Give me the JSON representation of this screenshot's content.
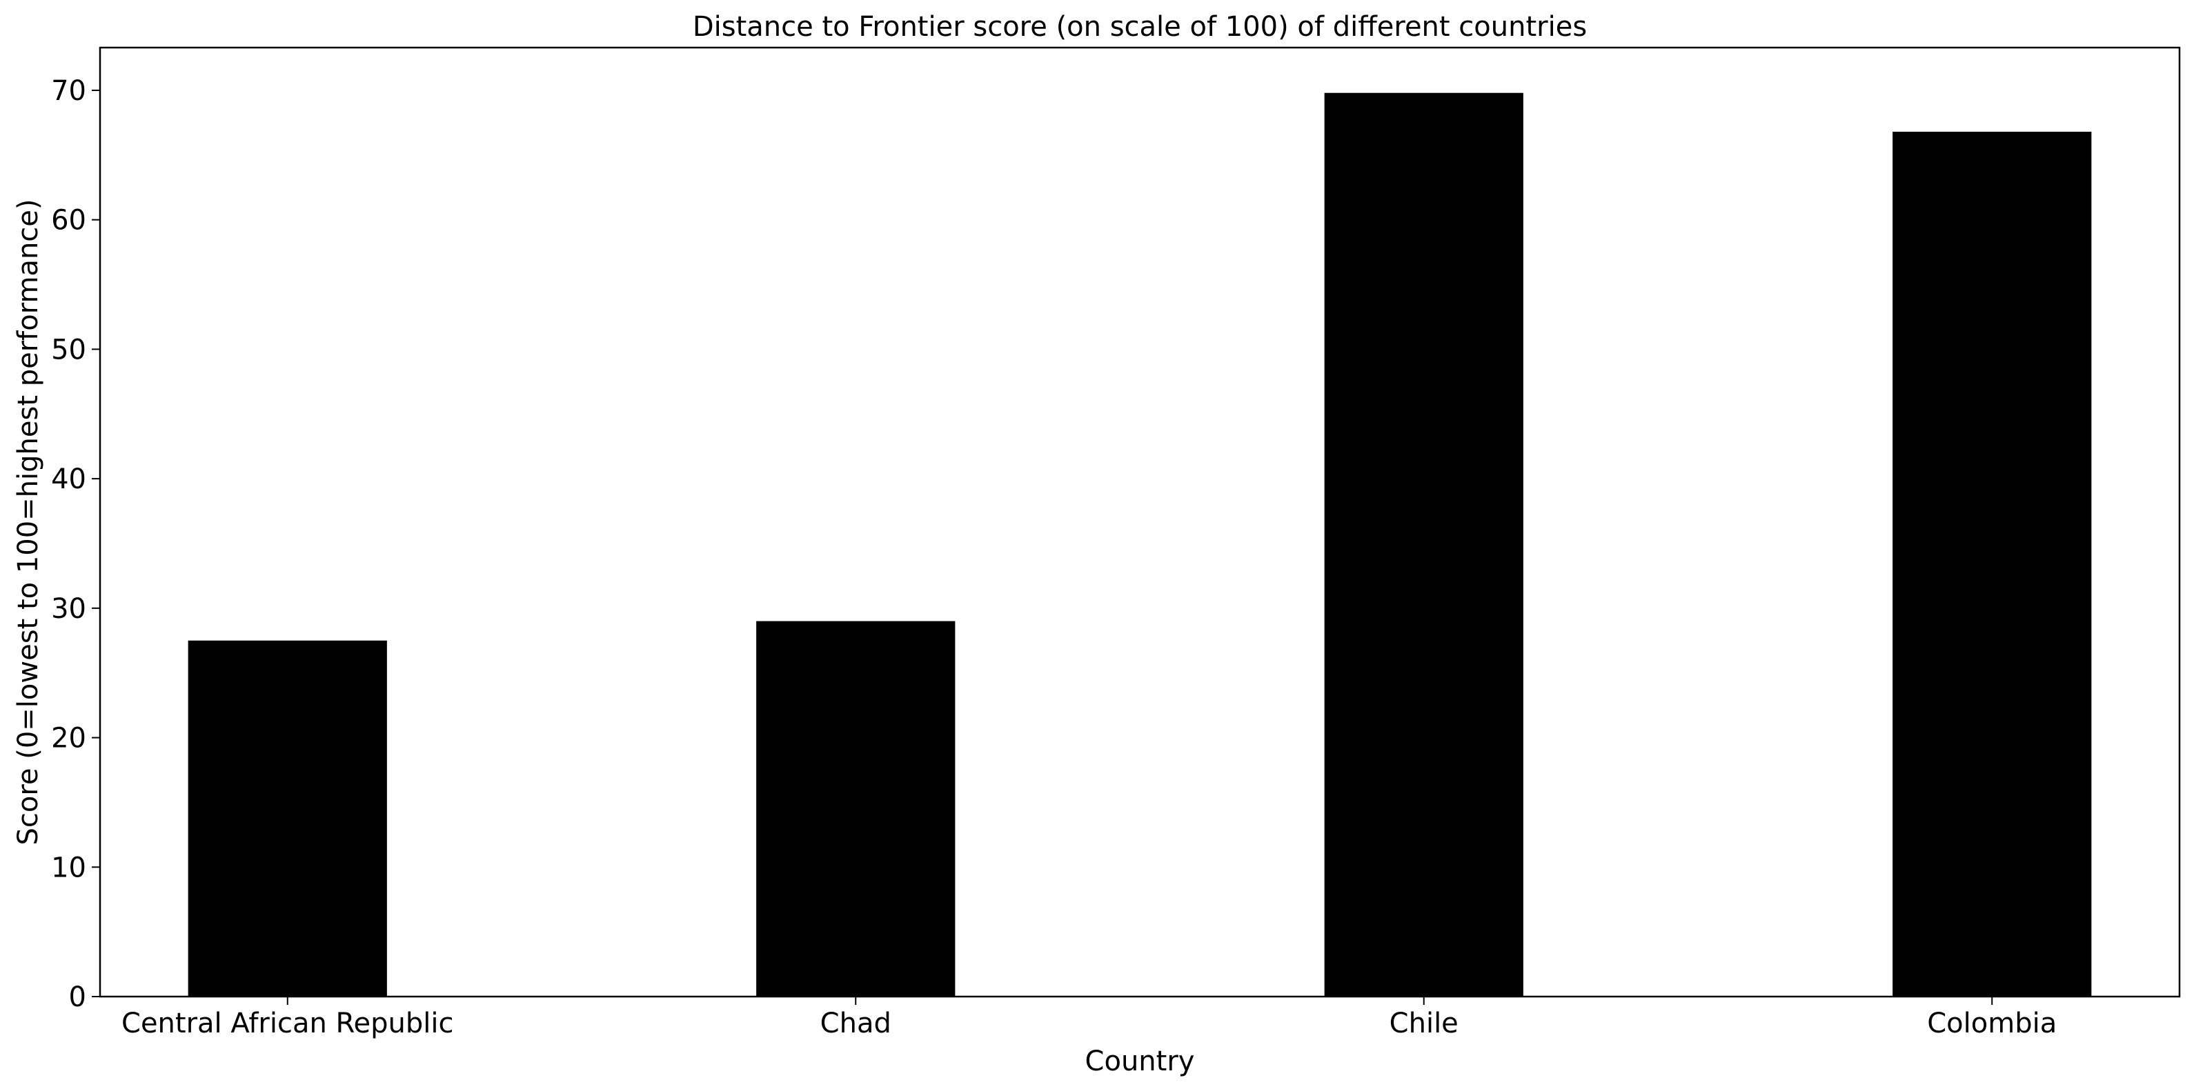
{
  "chart_data": {
    "type": "bar",
    "title": "Distance to Frontier score (on scale of 100) of different countries",
    "xlabel": "Country",
    "ylabel": "Score (0=lowest to 100=highest performance)",
    "categories": [
      "Central African Republic",
      "Chad",
      "Chile",
      "Colombia"
    ],
    "values": [
      27.5,
      29.0,
      69.8,
      66.8
    ],
    "ylim": [
      0,
      73.3
    ],
    "yticks": [
      0,
      10,
      20,
      30,
      40,
      50,
      60,
      70
    ],
    "grid": false,
    "legend": "none",
    "bar_color": "#000000"
  }
}
